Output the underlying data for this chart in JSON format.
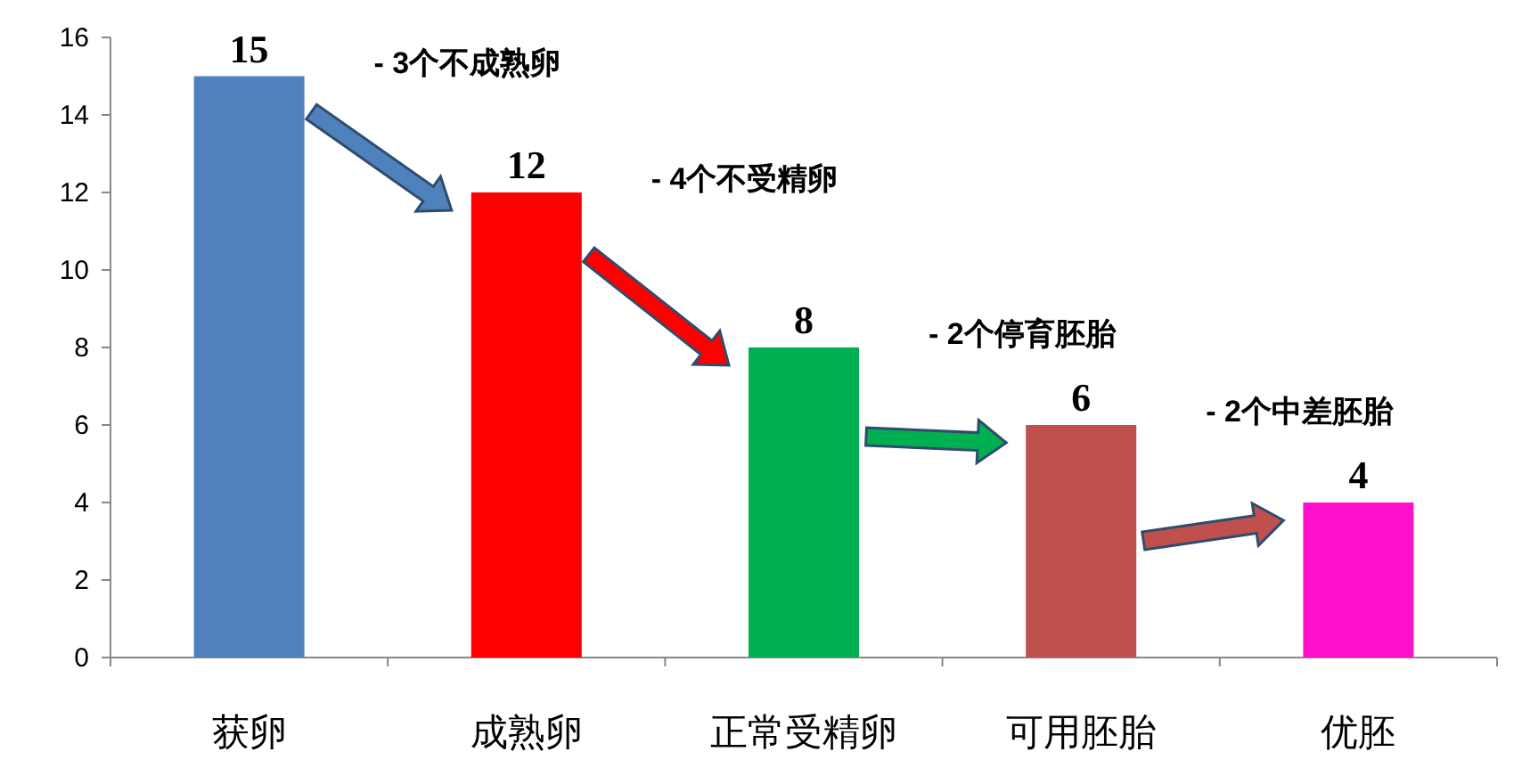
{
  "chart_data": {
    "type": "bar",
    "categories": [
      "获卵",
      "成熟卵",
      "正常受精卵",
      "可用胚胎",
      "优胚"
    ],
    "values": [
      15,
      12,
      8,
      6,
      4
    ],
    "colors": [
      "#4f81bd",
      "#ff0000",
      "#00b050",
      "#c0504d",
      "#ff11cc"
    ],
    "ylim": [
      0,
      16
    ],
    "yticks": [
      0,
      2,
      4,
      6,
      8,
      10,
      12,
      14,
      16
    ],
    "grid": false,
    "data_labels": true,
    "annotations": [
      "- 3个不成熟卵",
      "- 4个不受精卵",
      "- 2个停育胚胎",
      "- 2个中差胚胎"
    ]
  }
}
